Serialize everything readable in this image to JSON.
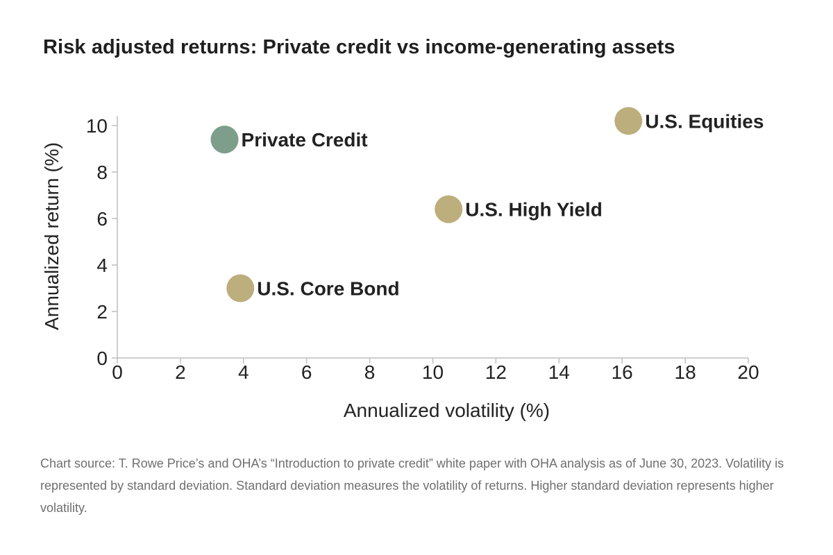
{
  "chart_data": {
    "type": "scatter",
    "title": "Risk adjusted returns: Private credit vs income-generating assets",
    "xlabel": "Annualized volatility (%)",
    "ylabel": "Annualized return (%)",
    "xlim": [
      0,
      20
    ],
    "ylim": [
      0,
      10
    ],
    "xticks": [
      "0",
      "2",
      "4",
      "6",
      "8",
      "10",
      "12",
      "14",
      "16",
      "18",
      "20"
    ],
    "yticks": [
      "0",
      "2",
      "4",
      "6",
      "8",
      "10"
    ],
    "grid": false,
    "points": [
      {
        "name": "Private Credit",
        "x": 3.4,
        "y": 9.4,
        "color": "#7d9e8a",
        "emphasis": true
      },
      {
        "name": "U.S. Equities",
        "x": 16.2,
        "y": 10.2,
        "color": "#bcae7d",
        "emphasis": false
      },
      {
        "name": "U.S. High Yield",
        "x": 10.5,
        "y": 6.4,
        "color": "#bcae7d",
        "emphasis": false
      },
      {
        "name": "U.S. Core Bond",
        "x": 3.9,
        "y": 3.0,
        "color": "#bcae7d",
        "emphasis": false
      }
    ]
  },
  "source_note": "Chart source: T. Rowe Price’s and OHA’s “Introduction to private credit” white paper with OHA analysis as of June 30, 2023. Volatility is represented by standard deviation. Standard deviation measures the volatility of returns. Higher standard deviation represents higher volatility."
}
